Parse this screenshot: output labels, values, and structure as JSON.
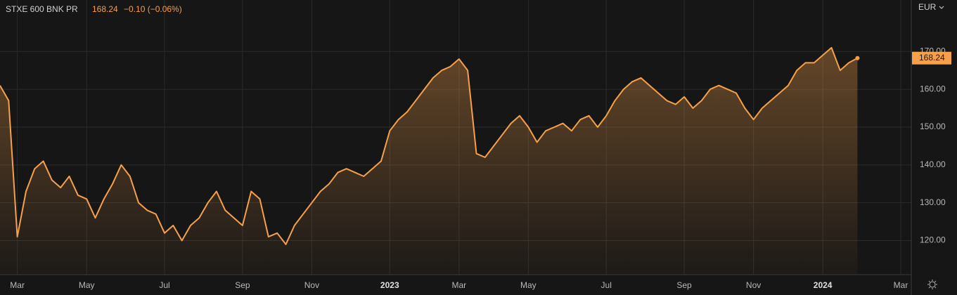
{
  "chart_data": {
    "type": "area",
    "title": "STXE 600 BNK PR",
    "subtitle": "−0.10 (−0.06%)",
    "currency": "EUR",
    "color": "#f7a04a",
    "grid": true,
    "categories": [
      null,
      null,
      "Mar",
      null,
      null,
      null,
      null,
      null,
      null,
      null,
      "May",
      null,
      null,
      null,
      null,
      null,
      null,
      null,
      null,
      "Jul",
      null,
      null,
      null,
      null,
      null,
      null,
      null,
      null,
      "Sep",
      null,
      null,
      null,
      null,
      null,
      null,
      null,
      "Nov",
      null,
      null,
      null,
      null,
      null,
      null,
      null,
      null,
      "2023",
      null,
      null,
      null,
      null,
      null,
      null,
      null,
      "Mar",
      null,
      null,
      null,
      null,
      null,
      null,
      null,
      "May",
      null,
      null,
      null,
      null,
      null,
      null,
      null,
      null,
      "Jul",
      null,
      null,
      null,
      null,
      null,
      null,
      null,
      null,
      "Sep",
      null,
      null,
      null,
      null,
      null,
      null,
      null,
      "Nov",
      null,
      null,
      null,
      null,
      null,
      null,
      null,
      "2024",
      null,
      null,
      null,
      null,
      null,
      null,
      null,
      null,
      "Mar"
    ],
    "values": [
      161,
      157,
      121,
      133,
      139,
      141,
      136,
      134,
      137,
      132,
      131,
      126,
      131,
      135,
      140,
      137,
      130,
      128,
      127,
      122,
      124,
      120,
      124,
      126,
      130,
      133,
      128,
      126,
      124,
      133,
      131,
      121,
      122,
      119,
      124,
      127,
      130,
      133,
      135,
      138,
      139,
      138,
      137,
      139,
      141,
      149,
      152,
      154,
      157,
      160,
      163,
      165,
      166,
      168,
      165,
      143,
      142,
      145,
      148,
      151,
      153,
      150,
      146,
      149,
      150,
      151,
      149,
      152,
      153,
      150,
      153,
      157,
      160,
      162,
      163,
      161,
      159,
      157,
      156,
      158,
      155,
      157,
      160,
      161,
      160,
      159,
      155,
      152,
      155,
      157,
      159,
      161,
      165,
      167,
      167,
      169,
      171,
      165,
      167,
      168.24,
      null,
      null,
      null,
      null,
      null
    ],
    "ylim": [
      111,
      183.6
    ],
    "yticks": [
      {
        "value": 120,
        "label": "120.00"
      },
      {
        "value": 130,
        "label": "130.00"
      },
      {
        "value": 140,
        "label": "140.00"
      },
      {
        "value": 150,
        "label": "150.00"
      },
      {
        "value": 160,
        "label": "160.00"
      },
      {
        "value": 170,
        "label": "170.00"
      }
    ]
  }
}
